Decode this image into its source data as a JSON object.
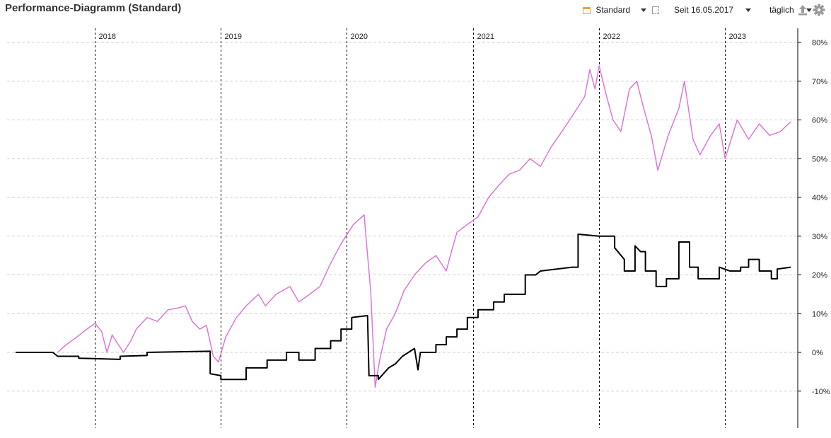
{
  "header": {
    "title": "Performance-Diagramm (Standard)",
    "view_select": "Standard",
    "period_select": "Seit 16.05.2017",
    "interval_select": "täglich",
    "icons": [
      "calendar-icon",
      "range-icon",
      "export-icon",
      "gear-icon"
    ]
  },
  "chart_data": {
    "type": "line",
    "title": "Performance-Diagramm (Standard)",
    "x_range": [
      "2017-05-16",
      "2023-07-10"
    ],
    "ylim": [
      -15,
      83
    ],
    "y_ticks": [
      80,
      70,
      60,
      50,
      40,
      30,
      20,
      10,
      0,
      -10
    ],
    "y_tick_labels": [
      "80%",
      "70%",
      "60%",
      "50%",
      "40%",
      "30%",
      "20%",
      "10%",
      "0%",
      "-10%"
    ],
    "year_labels": [
      "2018",
      "2019",
      "2020",
      "2021",
      "2022",
      "2023"
    ],
    "year_dates": [
      "2018-01-01",
      "2019-01-01",
      "2020-01-01",
      "2021-01-01",
      "2022-01-01",
      "2023-01-01"
    ],
    "grid": true,
    "series": [
      {
        "color": "#dd77d6",
        "points": [
          [
            "2017-09-15",
            0
          ],
          [
            "2017-10-10",
            2
          ],
          [
            "2017-11-10",
            4
          ],
          [
            "2017-12-01",
            5.5
          ],
          [
            "2018-01-01",
            7.5
          ],
          [
            "2018-01-20",
            5.5
          ],
          [
            "2018-02-05",
            0
          ],
          [
            "2018-02-20",
            4.5
          ],
          [
            "2018-03-10",
            2
          ],
          [
            "2018-03-25",
            0
          ],
          [
            "2018-04-15",
            3
          ],
          [
            "2018-05-01",
            6
          ],
          [
            "2018-06-01",
            9
          ],
          [
            "2018-07-01",
            8
          ],
          [
            "2018-08-01",
            11
          ],
          [
            "2018-09-01",
            11.5
          ],
          [
            "2018-09-20",
            12
          ],
          [
            "2018-10-10",
            8
          ],
          [
            "2018-11-01",
            6
          ],
          [
            "2018-11-20",
            7
          ],
          [
            "2018-12-10",
            -1
          ],
          [
            "2018-12-25",
            -2.5
          ],
          [
            "2019-01-15",
            4
          ],
          [
            "2019-02-15",
            9
          ],
          [
            "2019-03-15",
            12
          ],
          [
            "2019-04-20",
            15
          ],
          [
            "2019-05-10",
            12
          ],
          [
            "2019-06-10",
            15
          ],
          [
            "2019-07-20",
            17
          ],
          [
            "2019-08-15",
            13
          ],
          [
            "2019-09-15",
            15
          ],
          [
            "2019-10-15",
            17
          ],
          [
            "2019-11-15",
            23
          ],
          [
            "2019-12-15",
            28
          ],
          [
            "2020-01-20",
            33
          ],
          [
            "2020-02-20",
            35.5
          ],
          [
            "2020-02-28",
            27
          ],
          [
            "2020-03-10",
            16
          ],
          [
            "2020-03-23",
            -9
          ],
          [
            "2020-04-05",
            -2
          ],
          [
            "2020-04-25",
            6
          ],
          [
            "2020-05-20",
            10
          ],
          [
            "2020-06-15",
            16
          ],
          [
            "2020-07-15",
            20
          ],
          [
            "2020-08-15",
            23
          ],
          [
            "2020-09-15",
            25
          ],
          [
            "2020-10-15",
            21
          ],
          [
            "2020-10-30",
            26
          ],
          [
            "2020-11-15",
            31
          ],
          [
            "2020-12-15",
            33
          ],
          [
            "2021-01-15",
            35
          ],
          [
            "2021-02-15",
            40
          ],
          [
            "2021-03-15",
            43
          ],
          [
            "2021-04-15",
            46
          ],
          [
            "2021-05-15",
            47
          ],
          [
            "2021-06-15",
            50
          ],
          [
            "2021-07-15",
            48
          ],
          [
            "2021-08-15",
            53
          ],
          [
            "2021-09-15",
            57
          ],
          [
            "2021-10-15",
            61
          ],
          [
            "2021-11-20",
            66
          ],
          [
            "2021-12-05",
            73
          ],
          [
            "2021-12-20",
            68
          ],
          [
            "2022-01-01",
            74
          ],
          [
            "2022-01-20",
            67
          ],
          [
            "2022-02-10",
            60
          ],
          [
            "2022-03-05",
            57
          ],
          [
            "2022-03-30",
            68
          ],
          [
            "2022-04-20",
            70
          ],
          [
            "2022-05-10",
            63
          ],
          [
            "2022-06-01",
            56
          ],
          [
            "2022-06-20",
            47
          ],
          [
            "2022-07-20",
            56
          ],
          [
            "2022-08-20",
            63
          ],
          [
            "2022-09-05",
            70
          ],
          [
            "2022-09-30",
            55
          ],
          [
            "2022-10-20",
            51
          ],
          [
            "2022-11-20",
            56
          ],
          [
            "2022-12-15",
            59
          ],
          [
            "2023-01-01",
            50
          ],
          [
            "2023-02-05",
            60
          ],
          [
            "2023-03-10",
            55
          ],
          [
            "2023-04-10",
            59
          ],
          [
            "2023-05-10",
            56
          ],
          [
            "2023-06-10",
            57
          ],
          [
            "2023-07-10",
            59.5
          ]
        ]
      },
      {
        "color": "#000000",
        "points": [
          [
            "2017-05-16",
            0
          ],
          [
            "2017-09-01",
            0
          ],
          [
            "2017-09-15",
            -1
          ],
          [
            "2017-11-15",
            -1
          ],
          [
            "2017-11-15",
            -1.5
          ],
          [
            "2018-03-15",
            -1.8
          ],
          [
            "2018-03-15",
            -1
          ],
          [
            "2018-06-01",
            -0.8
          ],
          [
            "2018-06-01",
            0
          ],
          [
            "2018-12-01",
            0.3
          ],
          [
            "2018-12-01",
            -5.5
          ],
          [
            "2019-01-01",
            -6
          ],
          [
            "2019-01-01",
            -7
          ],
          [
            "2019-03-15",
            -7
          ],
          [
            "2019-03-15",
            -4
          ],
          [
            "2019-05-15",
            -4
          ],
          [
            "2019-05-15",
            -2
          ],
          [
            "2019-07-10",
            -2
          ],
          [
            "2019-07-10",
            0
          ],
          [
            "2019-08-15",
            0
          ],
          [
            "2019-08-15",
            -2
          ],
          [
            "2019-10-01",
            -2
          ],
          [
            "2019-10-01",
            1
          ],
          [
            "2019-11-15",
            1
          ],
          [
            "2019-11-15",
            3
          ],
          [
            "2019-12-15",
            3
          ],
          [
            "2019-12-15",
            6
          ],
          [
            "2020-01-15",
            6
          ],
          [
            "2020-01-15",
            9
          ],
          [
            "2020-03-01",
            9.5
          ],
          [
            "2020-03-05",
            -6
          ],
          [
            "2020-04-01",
            -6
          ],
          [
            "2020-04-01",
            -7
          ],
          [
            "2020-05-01",
            -4
          ],
          [
            "2020-05-20",
            -3
          ],
          [
            "2020-06-10",
            -1
          ],
          [
            "2020-07-15",
            1
          ],
          [
            "2020-07-25",
            -4.5
          ],
          [
            "2020-08-01",
            0
          ],
          [
            "2020-09-15",
            0
          ],
          [
            "2020-09-15",
            2
          ],
          [
            "2020-10-15",
            2
          ],
          [
            "2020-10-15",
            4
          ],
          [
            "2020-11-15",
            4
          ],
          [
            "2020-11-15",
            6
          ],
          [
            "2020-12-15",
            6
          ],
          [
            "2020-12-15",
            9
          ],
          [
            "2021-01-15",
            9
          ],
          [
            "2021-01-15",
            11
          ],
          [
            "2021-03-01",
            11
          ],
          [
            "2021-03-01",
            13
          ],
          [
            "2021-04-01",
            13
          ],
          [
            "2021-04-01",
            15
          ],
          [
            "2021-06-01",
            15
          ],
          [
            "2021-06-01",
            20
          ],
          [
            "2021-07-01",
            20
          ],
          [
            "2021-07-15",
            21
          ],
          [
            "2021-10-15",
            22
          ],
          [
            "2021-11-01",
            22
          ],
          [
            "2021-11-01",
            30.5
          ],
          [
            "2022-01-01",
            30
          ],
          [
            "2022-02-15",
            30
          ],
          [
            "2022-02-15",
            27
          ],
          [
            "2022-03-15",
            24
          ],
          [
            "2022-03-15",
            21
          ],
          [
            "2022-04-15",
            21
          ],
          [
            "2022-04-15",
            27.5
          ],
          [
            "2022-05-01",
            26
          ],
          [
            "2022-05-15",
            26
          ],
          [
            "2022-05-15",
            21
          ],
          [
            "2022-06-15",
            21
          ],
          [
            "2022-06-15",
            17
          ],
          [
            "2022-07-15",
            17
          ],
          [
            "2022-07-15",
            19
          ],
          [
            "2022-08-20",
            19
          ],
          [
            "2022-08-20",
            28.5
          ],
          [
            "2022-09-20",
            28.5
          ],
          [
            "2022-09-20",
            22
          ],
          [
            "2022-10-15",
            22
          ],
          [
            "2022-10-15",
            19
          ],
          [
            "2022-12-15",
            19
          ],
          [
            "2022-12-15",
            22
          ],
          [
            "2023-01-15",
            21
          ],
          [
            "2023-02-15",
            21
          ],
          [
            "2023-02-15",
            22
          ],
          [
            "2023-03-10",
            22
          ],
          [
            "2023-03-10",
            24
          ],
          [
            "2023-04-10",
            24
          ],
          [
            "2023-04-10",
            21
          ],
          [
            "2023-05-15",
            21
          ],
          [
            "2023-05-15",
            19
          ],
          [
            "2023-06-01",
            19
          ],
          [
            "2023-06-01",
            21.5
          ],
          [
            "2023-07-10",
            22
          ]
        ]
      }
    ]
  }
}
